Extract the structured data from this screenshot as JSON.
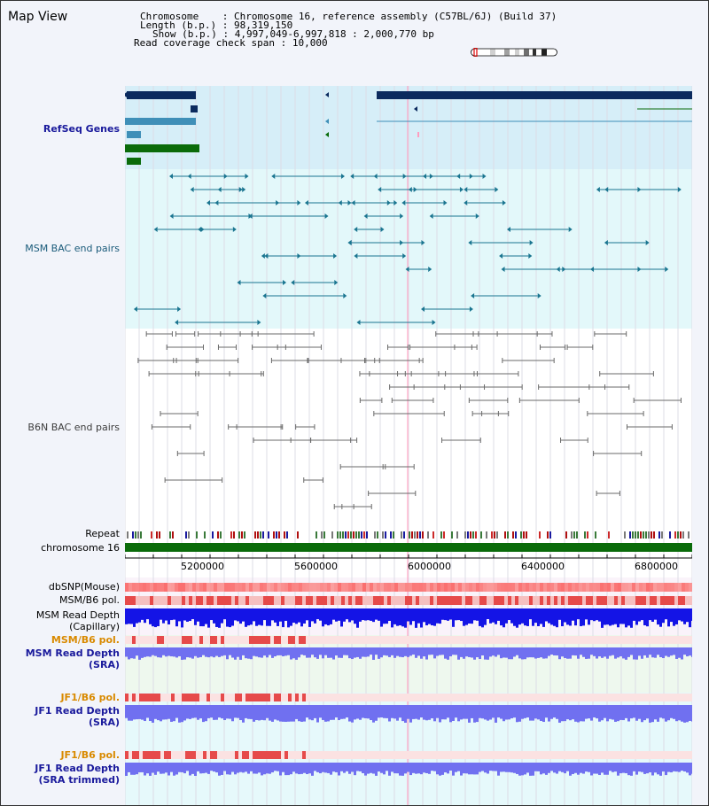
{
  "header": {
    "title": "Map View",
    "chromosome_key": "Chromosome",
    "chromosome_value": "Chromosome 16, reference assembly (C57BL/6J) (Build 37)",
    "length_key": "Length (b.p.)",
    "length_value": "98,319,150",
    "show_key": "Show (b.p.)",
    "show_value": "4,997,049-6,997,818 : 2,000,770 bp",
    "span_key": "Read coverage check span",
    "span_value": "10,000"
  },
  "tracks": {
    "refseq": "RefSeq Genes",
    "msm_bac": "MSM BAC end pairs",
    "b6n_bac": "B6N BAC end pairs",
    "repeat": "Repeat",
    "chromosome": "chromosome 16",
    "dbsnp": "dbSNP(Mouse)",
    "msm_b6_pol": "MSM/B6 pol.",
    "msm_read_depth_cap_1": "MSM Read Depth",
    "msm_read_depth_cap_2": "(Capillary)",
    "msm_b6_pol_sra": "MSM/B6 pol.",
    "msm_read_depth_sra_1": "MSM Read Depth",
    "msm_read_depth_sra_2": "(SRA)",
    "jf1_b6_pol": "JF1/B6 pol.",
    "jf1_read_depth_1": "JF1 Read Depth",
    "jf1_read_depth_2": "(SRA)",
    "jf1_b6_pol_trim": "JF1/B6 pol.",
    "jf1_read_depth_trim_1": "JF1 Read Depth",
    "jf1_read_depth_trim_2": "(SRA trimmed)"
  },
  "scale": {
    "ticks": [
      "5200000",
      "5600000",
      "6000000",
      "6400000",
      "6800000"
    ]
  },
  "colors": {
    "refseq_dark": "#0b2a5e",
    "refseq_mid": "#3f8fb8",
    "refseq_green": "#0a6b0a",
    "refseq_bg": "#d6eef8",
    "msm_bac": "#1a7590",
    "msm_bg": "#e3f8fa",
    "b6n_bac": "#6a6a6a",
    "chromosome_bar": "#0a6b0a",
    "depth_blue": "#1414e6",
    "depth_purple": "#7070f0",
    "pol_red": "#e64a4a",
    "highlight": "#ff9dc0"
  }
}
